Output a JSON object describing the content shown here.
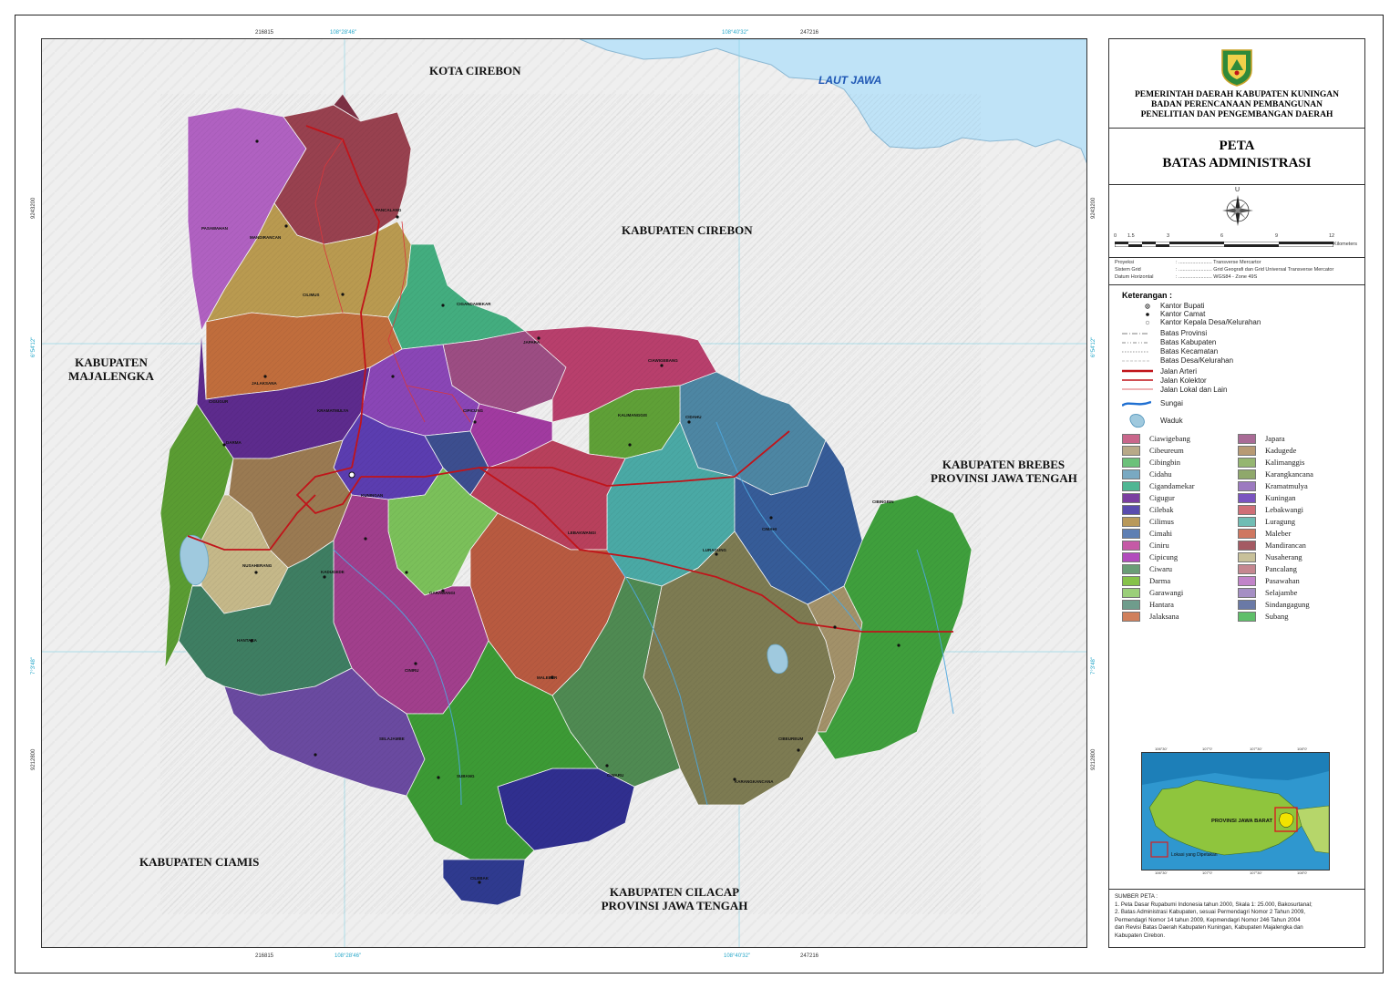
{
  "map": {
    "neighbors": {
      "kota_cirebon": "KOTA CIREBON",
      "kab_cirebon": "KABUPATEN CIREBON",
      "laut_jawa": "LAUT JAWA",
      "majalengka_1": "KABUPATEN",
      "majalengka_2": "MAJALENGKA",
      "brebes_1": "KABUPATEN BREBES",
      "brebes_2": "PROVINSI JAWA TENGAH",
      "ciamis": "KABUPATEN CIAMIS",
      "cilacap_1": "KABUPATEN CILACAP",
      "cilacap_2": "PROVINSI JAWA TENGAH"
    },
    "coords": {
      "top_e1": "216815",
      "top_lon1": "108°28'46\"",
      "top_lon2": "108°40'32\"",
      "top_e2": "247216",
      "bottom_e1": "216815",
      "bottom_lon1": "108°28'46\"",
      "bottom_lon2": "108°40'32\"",
      "bottom_e2": "247216",
      "left_n1": "9243200",
      "left_lat1": "6°54'12\"",
      "left_lat2": "7°3'48\"",
      "left_n2": "9212800",
      "right_n1": "9243200",
      "right_lat1": "6°54'12\"",
      "right_lat2": "7°3'48\"",
      "right_n2": "9212800"
    },
    "district_labels": [
      "PASAWAHAN",
      "MANDIRANCAN",
      "PANCALANG",
      "CILIMUS",
      "JALAKSANA",
      "CIGANDAMEKAR",
      "JAPARA",
      "CIAWIGEBANG",
      "KRAMATMULYA",
      "CIGUGUR",
      "KUNINGAN",
      "DARMA",
      "KADUGEDE",
      "NUSAHERANG",
      "CIDAHU",
      "KALIMANGGIS",
      "CIPICUNG",
      "LURAGUNG",
      "LEBAKWANGI",
      "GARAWANGI",
      "CINIRU",
      "HANTARA",
      "MALEBER",
      "CIMAHI",
      "CIBINGBIN",
      "SELAJAMBE",
      "SUBANG",
      "CIBEUREUM",
      "CILEBAK",
      "CIWARU",
      "KARANGKANCANA"
    ],
    "colors": {
      "sea": "#bfe3f7",
      "background": "#efefef",
      "road_arteri": "#c0141a",
      "river": "#4da7e0"
    }
  },
  "panel": {
    "gov_line1": "PEMERINTAH DAERAH KABUPATEN KUNINGAN",
    "gov_line2": "BADAN PERENCANAAN PEMBANGUNAN",
    "gov_line3": "PENELITIAN DAN PENGEMBANGAN DAERAH",
    "title_line1": "PETA",
    "title_line2": "BATAS ADMINISTRASI",
    "north": "U",
    "scale": {
      "ticks": [
        "0",
        "1.5",
        "3",
        "6",
        "9",
        "12"
      ],
      "unit": "Kilometers"
    },
    "projection": [
      {
        "label": "Proyeksi",
        "value": ": ........................ Transverse Mercartor"
      },
      {
        "label": "Sistem Grid",
        "value": ": ........................ Grid Geografi dan Grid Universal Transverse Mercator"
      },
      {
        "label": "Datum Horizontal",
        "value": ": ........................ WGS84 - Zone 49S"
      }
    ],
    "keterangan": "Keterangan :",
    "point_legend": [
      "Kantor Bupati",
      "Kantor Camat",
      "Kantor Kepala Desa/Kelurahan"
    ],
    "boundary_legend": [
      "Batas Provinsi",
      "Batas Kabupaten",
      "Batas Kecamatan",
      "Batas Desa/Kelurahan"
    ],
    "road_legend": [
      "Jalan Arteri",
      "Jalan Kolektor",
      "Jalan Lokal dan Lain"
    ],
    "sungai": "Sungai",
    "waduk": "Waduk",
    "kecamatan_col1": [
      {
        "name": "Ciawigebang",
        "color": "#c9668b"
      },
      {
        "name": "Cibeureum",
        "color": "#b8a988"
      },
      {
        "name": "Cibingbin",
        "color": "#6cc17a"
      },
      {
        "name": "Cidahu",
        "color": "#79a9c2"
      },
      {
        "name": "Cigandamekar",
        "color": "#4fb693"
      },
      {
        "name": "Cigugur",
        "color": "#7b3ea0"
      },
      {
        "name": "Cilebak",
        "color": "#5a4cae"
      },
      {
        "name": "Cilimus",
        "color": "#b9995a"
      },
      {
        "name": "Cimahi",
        "color": "#5e7fb3"
      },
      {
        "name": "Ciniru",
        "color": "#c55aa6"
      },
      {
        "name": "Cipicung",
        "color": "#b24cbd"
      },
      {
        "name": "Ciwaru",
        "color": "#6a9d76"
      },
      {
        "name": "Darma",
        "color": "#86c24a"
      },
      {
        "name": "Garawangi",
        "color": "#9bcf7a"
      },
      {
        "name": "Hantara",
        "color": "#6f9c8c"
      },
      {
        "name": "Jalaksana",
        "color": "#d0805c"
      }
    ],
    "kecamatan_col2": [
      {
        "name": "Japara",
        "color": "#a96b96"
      },
      {
        "name": "Kadugede",
        "color": "#b79a74"
      },
      {
        "name": "Kalimanggis",
        "color": "#95b671"
      },
      {
        "name": "Karangkancana",
        "color": "#8fa86b"
      },
      {
        "name": "Kramatmulya",
        "color": "#9c7ac0"
      },
      {
        "name": "Kuningan",
        "color": "#7a54c0"
      },
      {
        "name": "Lebakwangi",
        "color": "#cf6f77"
      },
      {
        "name": "Luragung",
        "color": "#70bdb4"
      },
      {
        "name": "Maleber",
        "color": "#cf7760"
      },
      {
        "name": "Mandirancan",
        "color": "#a45a63"
      },
      {
        "name": "Nusaherang",
        "color": "#c8c19a"
      },
      {
        "name": "Pancalang",
        "color": "#c58790"
      },
      {
        "name": "Pasawahan",
        "color": "#c184c9"
      },
      {
        "name": "Selajambe",
        "color": "#a58fc4"
      },
      {
        "name": "Sindangagung",
        "color": "#6a79a6"
      },
      {
        "name": "Subang",
        "color": "#5fbf6a"
      }
    ],
    "inset_label": "PROVINSI JAWA BARAT",
    "inset_note": "Lokasi yang Dipetakan",
    "inset_coords_top": [
      "106°30'",
      "107°0'",
      "107°30'",
      "108°0'"
    ],
    "inset_coords_bottom": [
      "106°30'",
      "107°0'",
      "107°30'",
      "108°0'"
    ],
    "source_title": "SUMBER PETA :",
    "source_lines": [
      "1. Peta Dasar Rupabumi Indonesia tahun 2000, Skala 1: 25.000, Bakosurtanal;",
      "2. Batas Administrasi Kabupaten, sesuai Permendagri Nomor 2 Tahun 2009,",
      "    Permendagri Nomor 14 tahun 2009, Kepmendagri Nomor 246 Tahun 2004",
      "    dan Revisi Batas Daerah Kabupaten Kuningan, Kabupaten Majalengka dan",
      "    Kabupaten Cirebon."
    ]
  }
}
